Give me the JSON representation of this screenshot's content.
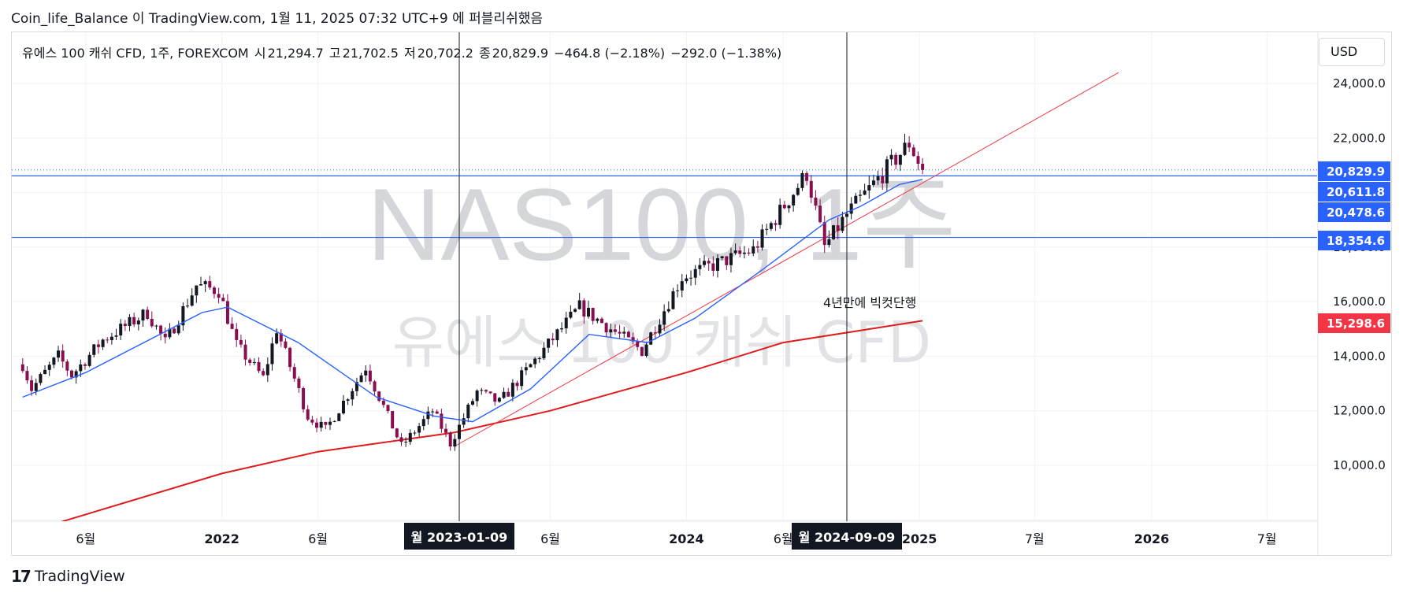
{
  "header": {
    "text": "Coin_life_Balance 이 TradingView.com, 1월 11, 2025 07:32 UTC+9 에 퍼블리쉬했음"
  },
  "legend": {
    "symbol": "유에스 100 캐쉬 CFD, 1주, FOREXCOM",
    "open_label": "시",
    "open": "21,294.7",
    "high_label": "고",
    "high": "21,702.5",
    "low_label": "저",
    "low": "20,702.2",
    "close_label": "종",
    "close": "20,829.9",
    "change": "−464.8 (−2.18%)",
    "change2": "−292.0 (−1.38%)"
  },
  "currency_button": "USD",
  "watermark": {
    "line1": "NAS100, 1주",
    "line2": "유에스 100 캐쉬 CFD"
  },
  "annotation": "4년만에 빅컷단행",
  "crosshair_labels": [
    "월 2023-01-09",
    "월 2024-09-09"
  ],
  "footer": {
    "logo": "17",
    "brand": "TradingView"
  },
  "colors": {
    "up": "#131722",
    "down": "#880e4f",
    "ma_short": "#2962ff",
    "ma_long": "#e01b1b",
    "trendline": "#f23645",
    "hline": "#2962ff",
    "price_label_blue": "#2962ff",
    "price_label_red": "#f23645"
  },
  "chart_data": {
    "type": "candlestick",
    "interval": "1W",
    "y_axis": {
      "ylim": [
        7500,
        25500
      ],
      "ticks": [
        "24,000.0",
        "22,000.0",
        "16,000.0",
        "14,000.0",
        "12,000.0",
        "10,000.0"
      ],
      "tick_values": [
        24000,
        22000,
        16000,
        14000,
        12000,
        10000
      ],
      "hidden_tick_label": "18,000.0"
    },
    "x_axis": {
      "range": [
        "2021-02-22",
        "2026-09-20"
      ],
      "ticks": [
        {
          "label": "6월",
          "date": "2021-06-01"
        },
        {
          "label": "2022",
          "date": "2022-01-01"
        },
        {
          "label": "6월",
          "date": "2022-06-01"
        },
        {
          "label": "6월",
          "date": "2023-06-01"
        },
        {
          "label": "2024",
          "date": "2024-01-01"
        },
        {
          "label": "6월",
          "date": "2024-06-01"
        },
        {
          "label": "2025",
          "date": "2025-01-01"
        },
        {
          "label": "7월",
          "date": "2025-07-01"
        },
        {
          "label": "2026",
          "date": "2026-01-01"
        },
        {
          "label": "7월",
          "date": "2026-07-01"
        }
      ]
    },
    "price_labels": [
      {
        "value": 20829.9,
        "text": "20,829.9",
        "color": "blue"
      },
      {
        "value": 20611.8,
        "text": "20,611.8",
        "color": "blue"
      },
      {
        "value": 20478.6,
        "text": "20,478.6",
        "color": "blue"
      },
      {
        "value": 18354.6,
        "text": "18,354.6",
        "color": "blue"
      },
      {
        "value": 15298.6,
        "text": "15,298.6",
        "color": "red"
      }
    ],
    "horizontal_lines": [
      20611.8,
      18354.6
    ],
    "dotted_line": 20829.9,
    "vertical_lines": [
      "2023-01-09",
      "2024-09-09"
    ],
    "trendline": {
      "from": {
        "date": "2023-01-02",
        "value": 10700
      },
      "to": {
        "date": "2025-11-10",
        "value": 24400
      }
    },
    "keypoints": [
      {
        "date": "2021-02-22",
        "value": 13700
      },
      {
        "date": "2021-03-08",
        "value": 12800
      },
      {
        "date": "2021-04-19",
        "value": 14000
      },
      {
        "date": "2021-05-10",
        "value": 13300
      },
      {
        "date": "2021-06-28",
        "value": 14600
      },
      {
        "date": "2021-09-06",
        "value": 15600
      },
      {
        "date": "2021-10-04",
        "value": 14500
      },
      {
        "date": "2021-11-22",
        "value": 16600
      },
      {
        "date": "2021-12-27",
        "value": 16400
      },
      {
        "date": "2022-01-24",
        "value": 14400
      },
      {
        "date": "2022-03-07",
        "value": 13200
      },
      {
        "date": "2022-03-28",
        "value": 15000
      },
      {
        "date": "2022-05-16",
        "value": 11800
      },
      {
        "date": "2022-06-13",
        "value": 11300
      },
      {
        "date": "2022-08-15",
        "value": 13600
      },
      {
        "date": "2022-10-10",
        "value": 10700
      },
      {
        "date": "2022-11-28",
        "value": 12000
      },
      {
        "date": "2022-12-26",
        "value": 10800
      },
      {
        "date": "2023-02-06",
        "value": 12700
      },
      {
        "date": "2023-03-13",
        "value": 12300
      },
      {
        "date": "2023-07-17",
        "value": 15800
      },
      {
        "date": "2023-10-23",
        "value": 14200
      },
      {
        "date": "2023-12-25",
        "value": 16900
      },
      {
        "date": "2024-04-15",
        "value": 17900
      },
      {
        "date": "2024-07-08",
        "value": 20700
      },
      {
        "date": "2024-08-05",
        "value": 18000
      },
      {
        "date": "2024-09-09",
        "value": 19200
      },
      {
        "date": "2024-12-16",
        "value": 21800
      },
      {
        "date": "2025-01-06",
        "value": 20830
      }
    ],
    "series": [
      {
        "type": "ma_short",
        "points": [
          {
            "date": "2021-02-22",
            "value": 12500
          },
          {
            "date": "2021-06-01",
            "value": 13400
          },
          {
            "date": "2021-12-01",
            "value": 15600
          },
          {
            "date": "2022-01-10",
            "value": 15800
          },
          {
            "date": "2022-05-01",
            "value": 14500
          },
          {
            "date": "2022-09-01",
            "value": 12500
          },
          {
            "date": "2022-12-01",
            "value": 11800
          },
          {
            "date": "2023-01-30",
            "value": 11600
          },
          {
            "date": "2023-05-01",
            "value": 12800
          },
          {
            "date": "2023-08-01",
            "value": 14800
          },
          {
            "date": "2023-11-01",
            "value": 14500
          },
          {
            "date": "2024-01-15",
            "value": 15400
          },
          {
            "date": "2024-05-01",
            "value": 17200
          },
          {
            "date": "2024-08-12",
            "value": 19000
          },
          {
            "date": "2024-10-01",
            "value": 19500
          },
          {
            "date": "2024-12-01",
            "value": 20300
          },
          {
            "date": "2025-01-06",
            "value": 20480
          }
        ]
      },
      {
        "type": "ma_long",
        "points": [
          {
            "date": "2021-02-22",
            "value": 7500
          },
          {
            "date": "2021-06-01",
            "value": 8200
          },
          {
            "date": "2022-01-01",
            "value": 9700
          },
          {
            "date": "2022-06-01",
            "value": 10500
          },
          {
            "date": "2023-01-01",
            "value": 11200
          },
          {
            "date": "2023-06-01",
            "value": 12000
          },
          {
            "date": "2024-01-01",
            "value": 13400
          },
          {
            "date": "2024-06-01",
            "value": 14500
          },
          {
            "date": "2025-01-06",
            "value": 15299
          }
        ]
      }
    ]
  }
}
